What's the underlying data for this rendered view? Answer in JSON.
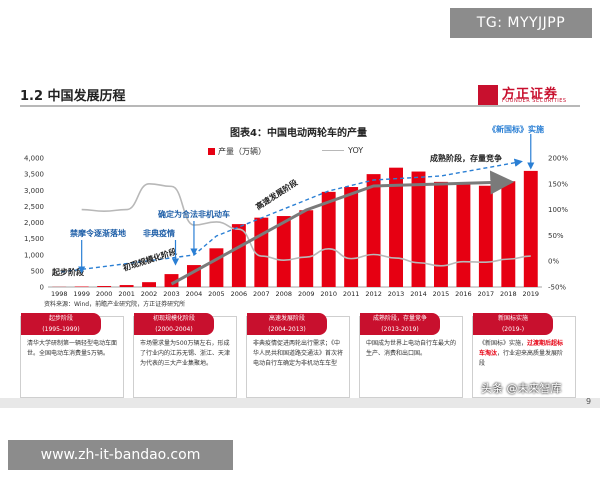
{
  "watermark_top": "TG: MYYJJPP",
  "section_title": "1.2 中国发展历程",
  "logo": {
    "cn": "方正证券",
    "en": "FOUNDER SECURITIES"
  },
  "chart_data": {
    "type": "bar",
    "title": "图表4：中国电动两轮车的产量",
    "legend": [
      "产量（万辆）",
      "YOY"
    ],
    "categories": [
      "1998",
      "1999",
      "2000",
      "2001",
      "2002",
      "2003",
      "2004",
      "2005",
      "2006",
      "2007",
      "2008",
      "2009",
      "2010",
      "2011",
      "2012",
      "2013",
      "2014",
      "2015",
      "2016",
      "2017",
      "2018",
      "2019"
    ],
    "series": [
      {
        "name": "产量（万辆）",
        "axis": "left",
        "color": "#e60012",
        "values": [
          5,
          15,
          30,
          60,
          150,
          400,
          680,
          1200,
          1950,
          2150,
          2200,
          2380,
          2950,
          3100,
          3500,
          3700,
          3580,
          3260,
          3220,
          3140,
          3280,
          3600
        ]
      },
      {
        "name": "YOY",
        "axis": "right",
        "color": "#b8b8b8",
        "values": [
          null,
          100,
          97,
          100,
          150,
          145,
          70,
          76,
          62,
          10,
          2,
          8,
          24,
          5,
          13,
          6,
          -3,
          -9,
          -1,
          -2,
          4,
          10
        ]
      }
    ],
    "ylim_left": [
      0,
      4000
    ],
    "yticks_left": [
      "0",
      "500",
      "1,000",
      "1,500",
      "2,000",
      "2,500",
      "3,000",
      "3,500",
      "4,000"
    ],
    "ylim_right": [
      -50,
      200
    ],
    "yticks_right": [
      "-50%",
      "0%",
      "50%",
      "100%",
      "150%",
      "200%"
    ],
    "grid": false,
    "annotations": {
      "stages": [
        "起步阶段",
        "初现规模化阶段",
        "高速发展阶段",
        "成熟阶段，存量竞争"
      ],
      "events": [
        "禁摩令逐渐落地",
        "非典疫情",
        "确定为合法非机动车",
        "《新国标》实施"
      ]
    },
    "source": "资料来源：Wind，前瞻产业研究院，方正证券研究所"
  },
  "cards": [
    {
      "title": "起步阶段",
      "period": "(1995-1999)",
      "body": "清华大学研制第一辆轻型电动车面世。全国电动车消费量5万辆。"
    },
    {
      "title": "初现规模化阶段",
      "period": "(2000-2004)",
      "body": "市场需求量为500万辆左右，形成了行业内的江苏无锡、浙江、天津为代表的三大产业集聚地。"
    },
    {
      "title": "高速发展阶段",
      "period": "(2004-2013)",
      "body": "非典疫情促进两轮出行需求；《中华人民共和国道路交通法》首次将电动自行车确定为非机动车车型"
    },
    {
      "title": "成熟阶段，存量竞争",
      "period": "(2013-2019)",
      "body": "中国成为世界上电动自行车最大的生产、消费和出口国。"
    },
    {
      "title": "新国标实施",
      "period": "(2019-)",
      "body_before": "《新国标》实施，",
      "body_highlight": "过渡期后超标车淘汰",
      "body_after": "，行业迎来高质量发展阶段"
    }
  ],
  "watermark_right": "头条 @未来智库",
  "page_number": "9",
  "watermark_bottom": "www.zh-it-bandao.com"
}
